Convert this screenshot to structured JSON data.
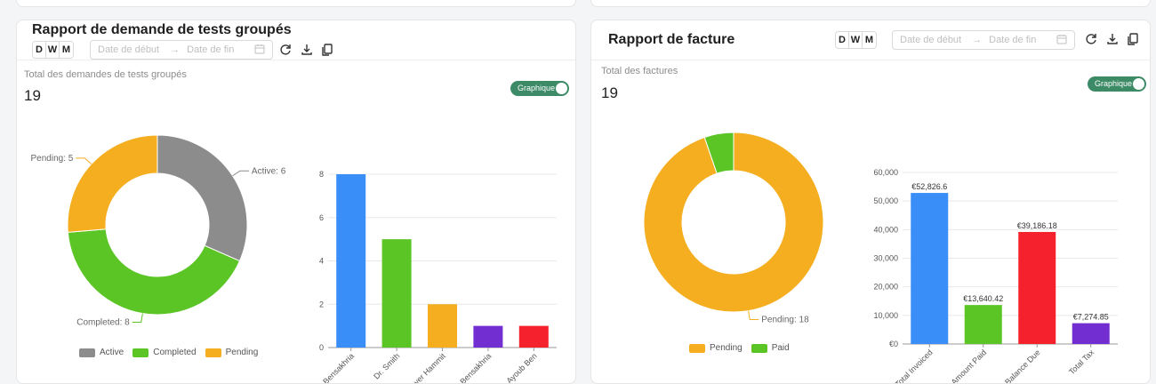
{
  "left_card": {
    "title": "Rapport de demande de tests groupés",
    "periods": [
      "D",
      "W",
      "M"
    ],
    "start_placeholder": "Date de début",
    "end_placeholder": "Date de fin",
    "subtitle": "Total des demandes de tests groupés",
    "total": "19",
    "toggle_label": "Graphique"
  },
  "right_card": {
    "title": "Rapport de facture",
    "periods": [
      "D",
      "W",
      "M"
    ],
    "start_placeholder": "Date de début",
    "end_placeholder": "Date de fin",
    "subtitle": "Total des factures",
    "total": "19",
    "toggle_label": "Graphique"
  },
  "icons": [
    "refresh-icon",
    "download-icon",
    "copy-icon",
    "calendar-icon",
    "arrow-right-icon"
  ],
  "chart_data": [
    {
      "type": "pie",
      "categories": [
        "Active",
        "Completed",
        "Pending"
      ],
      "values": [
        6,
        8,
        5
      ],
      "labels": [
        "Active: 6",
        "Completed: 8",
        "Pending: 5"
      ],
      "colors": [
        "#8c8c8c",
        "#5cc526",
        "#f4ae20"
      ],
      "legend_position": "bottom",
      "donut": true
    },
    {
      "type": "bar",
      "categories": [
        "Ayoub Bensakhria",
        "Dr. Smith",
        "Dr Mayer Hammit",
        "Ayoub Bensakhria",
        "Ayoub Ben"
      ],
      "tick_labels": [
        "youb Bensakhria",
        "Dr. Smith",
        "Dr Mayer Hammit",
        "youb Bensakhria",
        "Ayoub Ben"
      ],
      "values": [
        8,
        5,
        2,
        1,
        1
      ],
      "colors": [
        "#3a8ef8",
        "#5cc526",
        "#f4ae20",
        "#722ed1",
        "#f5222d"
      ],
      "ylim": [
        0,
        8
      ],
      "yticks": [
        "0",
        "2",
        "4",
        "6",
        "8"
      ],
      "grid": true
    },
    {
      "type": "pie",
      "categories": [
        "Pending",
        "Paid"
      ],
      "values": [
        18,
        1
      ],
      "labels": [
        "Pending: 18"
      ],
      "colors": [
        "#f4ae20",
        "#5cc526"
      ],
      "legend_position": "bottom",
      "donut": true
    },
    {
      "type": "bar",
      "categories": [
        "Total Invoiced",
        "Amount Paid",
        "Balance Due",
        "Total Tax"
      ],
      "values": [
        52826.6,
        13640.42,
        39186.18,
        7274.85
      ],
      "data_labels": [
        "€52,826.6",
        "€13,640.42",
        "€39,186.18",
        "€7,274.85"
      ],
      "colors": [
        "#3a8ef8",
        "#5cc526",
        "#f5222d",
        "#722ed1"
      ],
      "ylim": [
        0,
        60000
      ],
      "yticks": [
        "€0",
        "10,000",
        "20,000",
        "30,000",
        "40,000",
        "50,000",
        "60,000"
      ],
      "grid": true
    }
  ]
}
